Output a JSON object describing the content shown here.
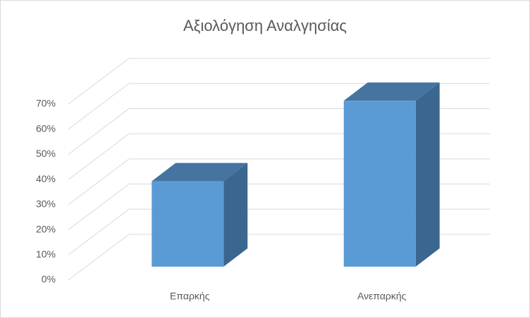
{
  "chart_data": {
    "type": "bar3d",
    "title": "Αξιολόγηση Αναλγησίας",
    "categories": [
      "Επαρκής",
      "Ανεπαρκής"
    ],
    "values": [
      34,
      66
    ],
    "color": "#5b9bd5",
    "ylim": [
      0,
      70
    ],
    "yticks": [
      {
        "value": 0,
        "label": "0%"
      },
      {
        "value": 10,
        "label": "10%"
      },
      {
        "value": 20,
        "label": "20%"
      },
      {
        "value": 30,
        "label": "30%"
      },
      {
        "value": 40,
        "label": "40%"
      },
      {
        "value": 50,
        "label": "50%"
      },
      {
        "value": 60,
        "label": "60%"
      },
      {
        "value": 70,
        "label": "70%"
      }
    ],
    "grid": true
  }
}
